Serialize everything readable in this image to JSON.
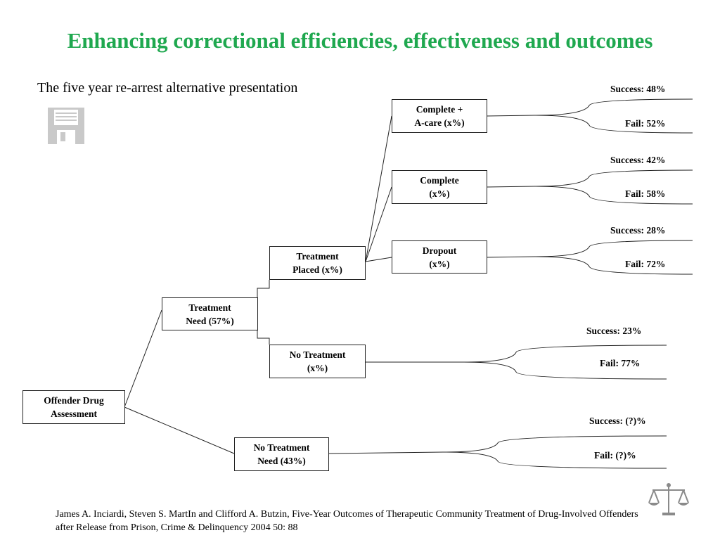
{
  "title": "Enhancing correctional efficiencies, effectiveness and outcomes",
  "subtitle": "The five year re-arrest alternative presentation",
  "nodes": {
    "root": [
      "Offender Drug",
      "Assessment"
    ],
    "need": [
      "Treatment",
      "Need (57%)"
    ],
    "no_need": [
      "No Treatment",
      "Need (43%)"
    ],
    "placed": [
      "Treatment",
      "Placed (x%)"
    ],
    "no_treatment": [
      "No Treatment",
      "(x%)"
    ],
    "complete_acare": [
      "Complete +",
      "A-care  (x%)"
    ],
    "complete": [
      "Complete",
      "(x%)"
    ],
    "dropout": [
      "Dropout",
      "(x%)"
    ]
  },
  "outcomes": {
    "complete_acare": {
      "success": "Success:  48%",
      "fail": "Fail:  52%"
    },
    "complete": {
      "success": "Success:  42%",
      "fail": "Fail:  58%"
    },
    "dropout": {
      "success": "Success:  28%",
      "fail": "Fail:  72%"
    },
    "no_treatment": {
      "success": "Success:  23%",
      "fail": "Fail:  77%"
    },
    "no_need": {
      "success": "Success:  (?)%",
      "fail": "Fail:  (?)%"
    }
  },
  "citation": "James A. Inciardi, Steven S. MartIn and Clifford A. Butzin, Five-Year Outcomes of Therapeutic Community Treatment of Drug-Involved Offenders after Release from Prison, Crime & Delinquency 2004 50: 88",
  "icons": {
    "save": "save-icon",
    "scales": "scales-of-justice-icon"
  },
  "colors": {
    "title": "#1fa84f"
  }
}
